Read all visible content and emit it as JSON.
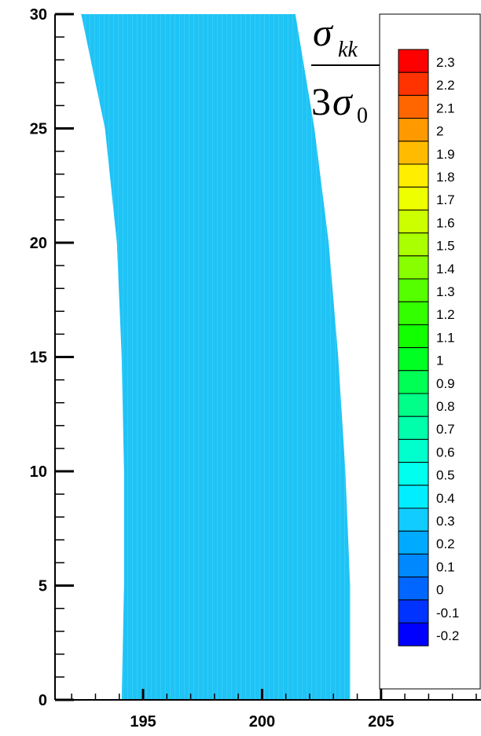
{
  "chart_data": {
    "type": "heatmap",
    "title": {
      "numerator": "σ",
      "numerator_sub": "kk",
      "denominator_coef": "3",
      "denominator_symbol": "σ",
      "denominator_sub": "0"
    },
    "xlabel": "",
    "ylabel": "",
    "xlim": [
      191.3,
      209.2
    ],
    "ylim": [
      0,
      30
    ],
    "x_ticks": [
      195,
      200,
      205
    ],
    "y_ticks": [
      0,
      5,
      10,
      15,
      20,
      25,
      30
    ],
    "x_minor_step": 1,
    "y_minor_step": 1,
    "field_value": 0.3,
    "field_color": "#1fc3f5",
    "region_left_boundary": [
      [
        194.1,
        0
      ],
      [
        194.2,
        5
      ],
      [
        194.2,
        10
      ],
      [
        194.1,
        15
      ],
      [
        193.9,
        20
      ],
      [
        193.4,
        25
      ],
      [
        192.4,
        30
      ]
    ],
    "region_right_boundary": [
      [
        203.7,
        0
      ],
      [
        203.7,
        5
      ],
      [
        203.5,
        10
      ],
      [
        203.2,
        15
      ],
      [
        202.8,
        20
      ],
      [
        202.2,
        25
      ],
      [
        201.4,
        30
      ]
    ],
    "colorbar": {
      "levels": [
        "2.3",
        "2.2",
        "2.1",
        "2",
        "1.9",
        "1.8",
        "1.7",
        "1.6",
        "1.5",
        "1.4",
        "1.3",
        "1.2",
        "1.1",
        "1",
        "0.9",
        "0.8",
        "0.7",
        "0.6",
        "0.5",
        "0.4",
        "0.3",
        "0.2",
        "0.1",
        "0",
        "-0.1",
        "-0.2"
      ],
      "colors": [
        "#ff0000",
        "#ff3300",
        "#ff6600",
        "#ff9900",
        "#ffbb00",
        "#ffee00",
        "#eeff00",
        "#ccff00",
        "#aaff00",
        "#88ff00",
        "#55ff00",
        "#33ff00",
        "#11ff00",
        "#00ff22",
        "#00ff55",
        "#00ff88",
        "#00ffaa",
        "#00ffcc",
        "#00ffee",
        "#00eeff",
        "#11ccff",
        "#00aaff",
        "#0088ff",
        "#0066ff",
        "#0033ff",
        "#0000ff"
      ],
      "placement": "right"
    },
    "grid": false
  }
}
